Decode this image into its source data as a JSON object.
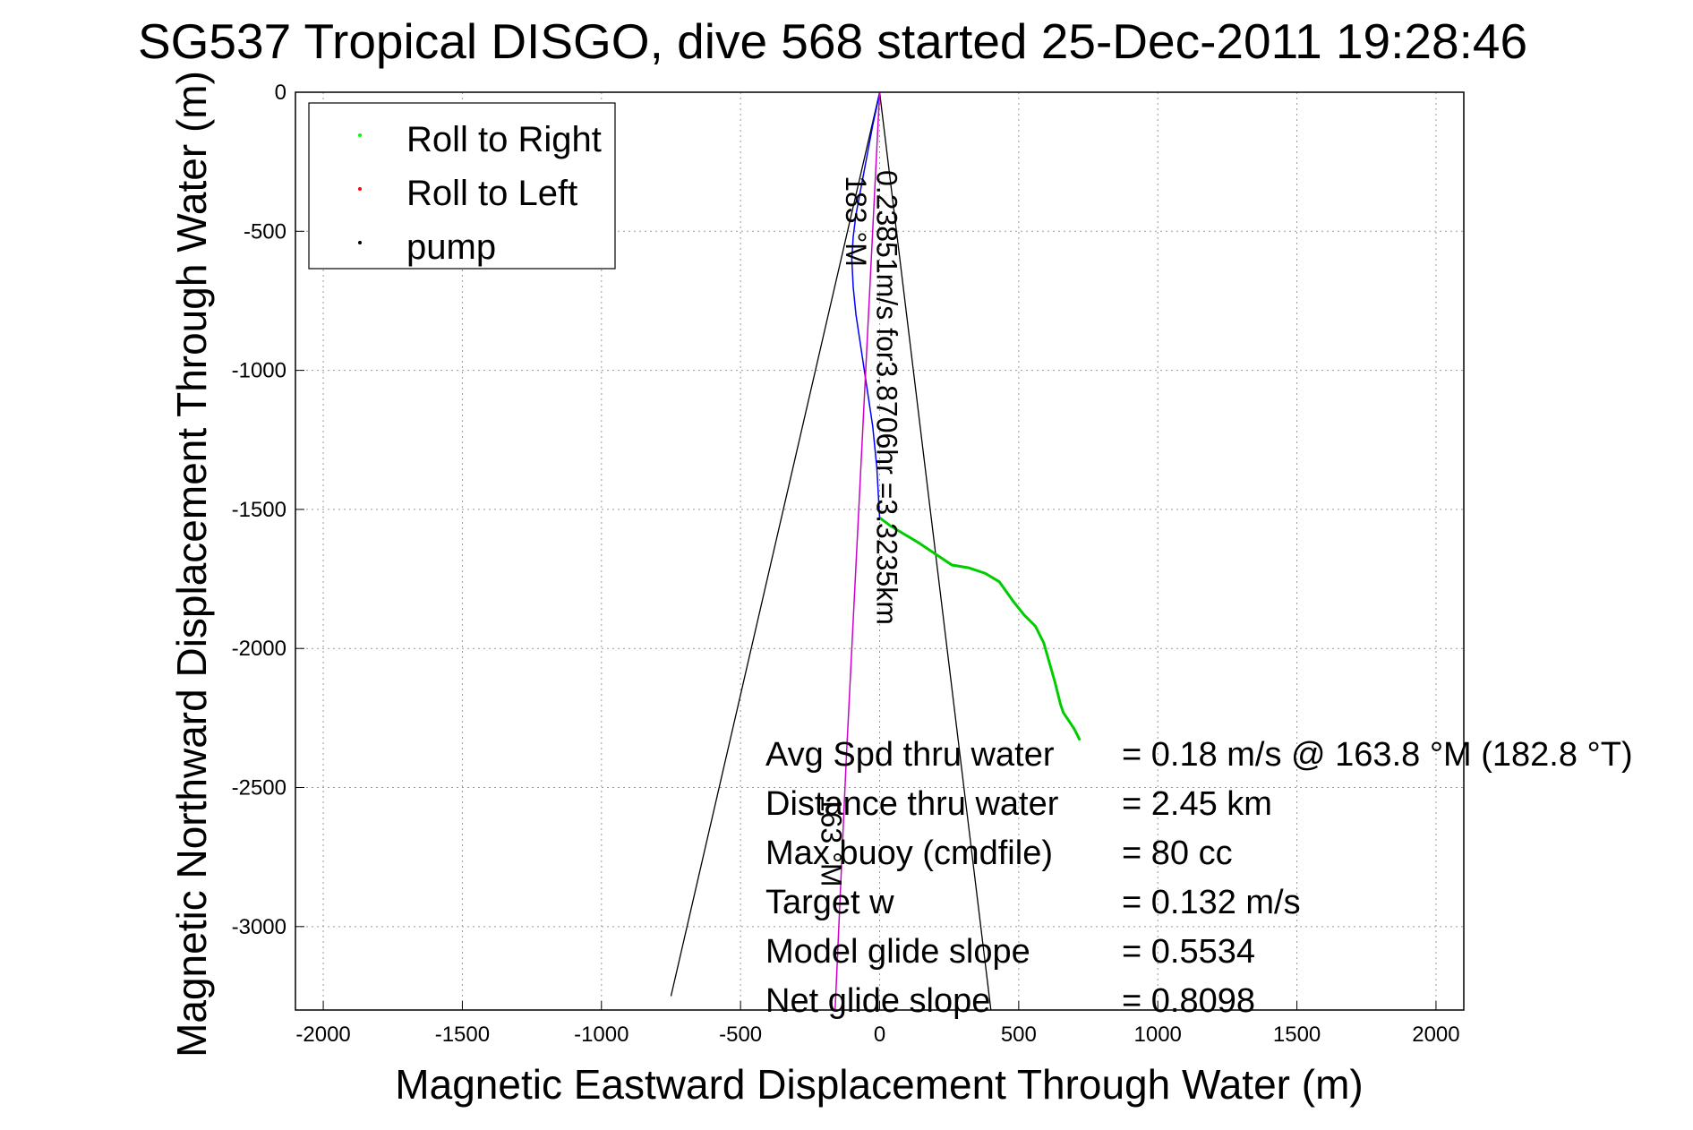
{
  "chart_data": {
    "type": "line",
    "title": "SG537 Tropical DISGO, dive 568 started 25-Dec-2011 19:28:46",
    "xlabel": "Magnetic Eastward Displacement Through Water (m)",
    "ylabel": "Magnetic Northward Displacement Through Water (m)",
    "xlim": [
      -2100,
      2100
    ],
    "ylim": [
      -3300,
      0
    ],
    "xticks": [
      -2000,
      -1500,
      -1000,
      -500,
      0,
      500,
      1000,
      1500,
      2000
    ],
    "yticks": [
      0,
      -500,
      -1000,
      -1500,
      -2000,
      -2500,
      -3000
    ],
    "grid": true,
    "legend": {
      "location": "top-left",
      "entries": [
        {
          "label": "Roll to Right",
          "color": "#00ff00"
        },
        {
          "label": "Roll to Left",
          "color": "#ff0000"
        },
        {
          "label": "pump",
          "color": "#000000"
        }
      ]
    },
    "series": [
      {
        "color": "#0000ff",
        "x": [
          0,
          -10,
          -25,
          -40,
          -55,
          -70,
          -85,
          -95,
          -100,
          -95,
          -85,
          -70,
          -55,
          -40,
          -25,
          -10,
          0
        ],
        "y": [
          0,
          -50,
          -120,
          -200,
          -280,
          -360,
          -440,
          -520,
          -600,
          -700,
          -800,
          -900,
          -1000,
          -1100,
          -1200,
          -1350,
          -1530
        ]
      },
      {
        "color": "#00cc00",
        "x": [
          0,
          40,
          90,
          140,
          200,
          260,
          320,
          380,
          430,
          480,
          520,
          560,
          590,
          610,
          630,
          650,
          660,
          680,
          700,
          720
        ],
        "y": [
          -1530,
          -1560,
          -1590,
          -1620,
          -1660,
          -1700,
          -1710,
          -1730,
          -1760,
          -1830,
          -1880,
          -1920,
          -1980,
          -2050,
          -2120,
          -2200,
          -2230,
          -2260,
          -2290,
          -2330
        ]
      },
      {
        "color": "#cc00cc",
        "x": [
          0,
          -40,
          -80,
          -120,
          -160
        ],
        "y": [
          0,
          -800,
          -1600,
          -2400,
          -3300
        ]
      }
    ],
    "reference_lines": [
      {
        "color": "#000000",
        "x": [
          0,
          -750
        ],
        "y": [
          0,
          -3250
        ]
      },
      {
        "color": "#000000",
        "x": [
          0,
          400
        ],
        "y": [
          0,
          -3300
        ]
      }
    ],
    "rotated_labels": [
      {
        "text": "183 °M",
        "x": -120,
        "y": -300,
        "rotation": 90
      },
      {
        "text": "0.23851m/s for3.8706hr =3.3235km",
        "x": -10,
        "y": -280,
        "rotation": 90
      },
      {
        "text": "163 °M",
        "x": -210,
        "y": -2530,
        "rotation": 90
      }
    ],
    "summary": [
      {
        "label": "Avg Spd thru water",
        "value": "=  0.18 m/s @ 163.8 °M (182.8 °T)"
      },
      {
        "label": "Distance thru water",
        "value": "=  2.45 km"
      },
      {
        "label": "Max buoy (cmdfile)",
        "value": "= 80 cc"
      },
      {
        "label": "Target w",
        "value": "= 0.132 m/s"
      },
      {
        "label": "Model glide slope",
        "value": "= 0.5534"
      },
      {
        "label": "Net glide slope",
        "value": "= 0.8098"
      }
    ]
  }
}
